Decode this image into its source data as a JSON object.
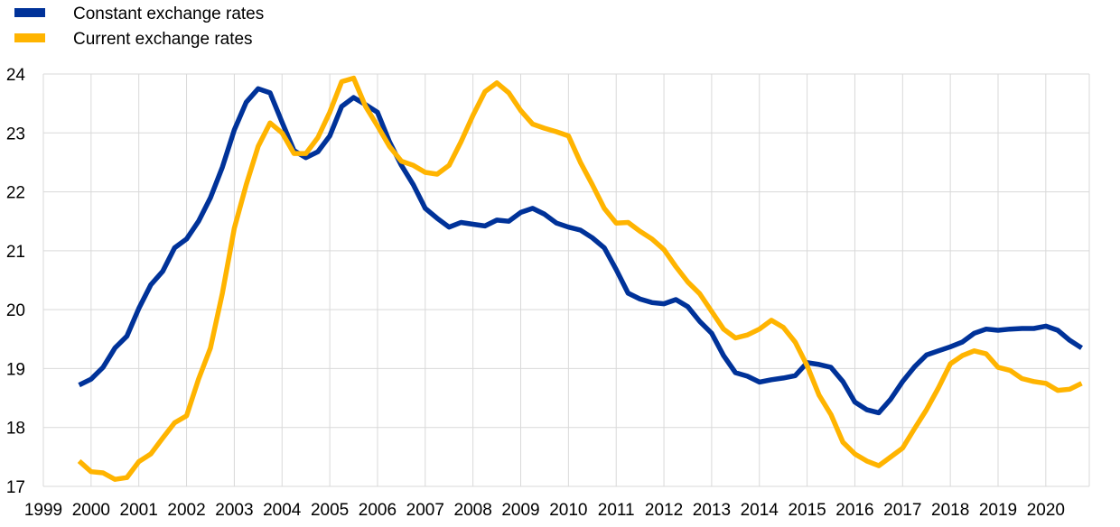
{
  "chart_data": {
    "type": "line",
    "title": "",
    "xlabel": "",
    "ylabel": "",
    "xlim": [
      1999.0,
      2020.8
    ],
    "ylim": [
      17,
      24
    ],
    "yticks": [
      17,
      18,
      19,
      20,
      21,
      22,
      23,
      24
    ],
    "xticks": [
      "1999",
      "2000",
      "2001",
      "2002",
      "2003",
      "2004",
      "2005",
      "2006",
      "2007",
      "2008",
      "2009",
      "2010",
      "2011",
      "2012",
      "2013",
      "2014",
      "2015",
      "2016",
      "2017",
      "2018",
      "2019",
      "2020"
    ],
    "grid": true,
    "legend_position": "top-left",
    "x": [
      1999.75,
      2000.0,
      2000.25,
      2000.5,
      2000.75,
      2001.0,
      2001.25,
      2001.5,
      2001.75,
      2002.0,
      2002.25,
      2002.5,
      2002.75,
      2003.0,
      2003.25,
      2003.5,
      2003.75,
      2004.0,
      2004.25,
      2004.5,
      2004.75,
      2005.0,
      2005.25,
      2005.5,
      2005.75,
      2006.0,
      2006.25,
      2006.5,
      2006.75,
      2007.0,
      2007.25,
      2007.5,
      2007.75,
      2008.0,
      2008.25,
      2008.5,
      2008.75,
      2009.0,
      2009.25,
      2009.5,
      2009.75,
      2010.0,
      2010.25,
      2010.5,
      2010.75,
      2011.0,
      2011.25,
      2011.5,
      2011.75,
      2012.0,
      2012.25,
      2012.5,
      2012.75,
      2013.0,
      2013.25,
      2013.5,
      2013.75,
      2014.0,
      2014.25,
      2014.5,
      2014.75,
      2015.0,
      2015.25,
      2015.5,
      2015.75,
      2016.0,
      2016.25,
      2016.5,
      2016.75,
      2017.0,
      2017.25,
      2017.5,
      2017.75,
      2018.0,
      2018.25,
      2018.5,
      2018.75,
      2019.0,
      2019.25,
      2019.5,
      2019.75,
      2020.0,
      2020.25,
      2020.5,
      2020.75
    ],
    "series": [
      {
        "name": "Constant exchange rates",
        "color": "#003299",
        "values": [
          18.72,
          18.82,
          19.02,
          19.35,
          19.55,
          20.02,
          20.42,
          20.65,
          21.05,
          21.2,
          21.5,
          21.9,
          22.42,
          23.05,
          23.52,
          23.75,
          23.68,
          23.18,
          22.7,
          22.58,
          22.68,
          22.95,
          23.45,
          23.6,
          23.48,
          23.35,
          22.85,
          22.45,
          22.12,
          21.72,
          21.55,
          21.4,
          21.48,
          21.45,
          21.42,
          21.52,
          21.5,
          21.65,
          21.72,
          21.62,
          21.47,
          21.4,
          21.35,
          21.22,
          21.05,
          20.68,
          20.28,
          20.18,
          20.12,
          20.1,
          20.17,
          20.05,
          19.8,
          19.6,
          19.22,
          18.93,
          18.87,
          18.77,
          18.81,
          18.84,
          18.88,
          19.1,
          19.07,
          19.02,
          18.78,
          18.43,
          18.3,
          18.25,
          18.48,
          18.78,
          19.03,
          19.23,
          19.3,
          19.37,
          19.45,
          19.6,
          19.67,
          19.65,
          19.67,
          19.68,
          19.68,
          19.72,
          19.65,
          19.48,
          19.35
        ]
      },
      {
        "name": "Current exchange rates",
        "color": "#FFB400",
        "values": [
          17.43,
          17.25,
          17.23,
          17.12,
          17.15,
          17.42,
          17.55,
          17.82,
          18.08,
          18.2,
          18.82,
          19.35,
          20.28,
          21.38,
          22.12,
          22.77,
          23.17,
          23.0,
          22.65,
          22.65,
          22.92,
          23.35,
          23.87,
          23.93,
          23.45,
          23.12,
          22.77,
          22.52,
          22.45,
          22.33,
          22.3,
          22.45,
          22.85,
          23.3,
          23.7,
          23.85,
          23.68,
          23.38,
          23.15,
          23.08,
          23.02,
          22.95,
          22.5,
          22.12,
          21.72,
          21.47,
          21.48,
          21.33,
          21.2,
          21.02,
          20.73,
          20.47,
          20.27,
          19.97,
          19.67,
          19.52,
          19.57,
          19.67,
          19.82,
          19.7,
          19.45,
          19.05,
          18.55,
          18.22,
          17.75,
          17.55,
          17.43,
          17.35,
          17.5,
          17.65,
          17.98,
          18.3,
          18.67,
          19.08,
          19.22,
          19.3,
          19.25,
          19.02,
          18.97,
          18.83,
          18.78,
          18.75,
          18.63,
          18.65,
          18.75
        ]
      }
    ]
  }
}
